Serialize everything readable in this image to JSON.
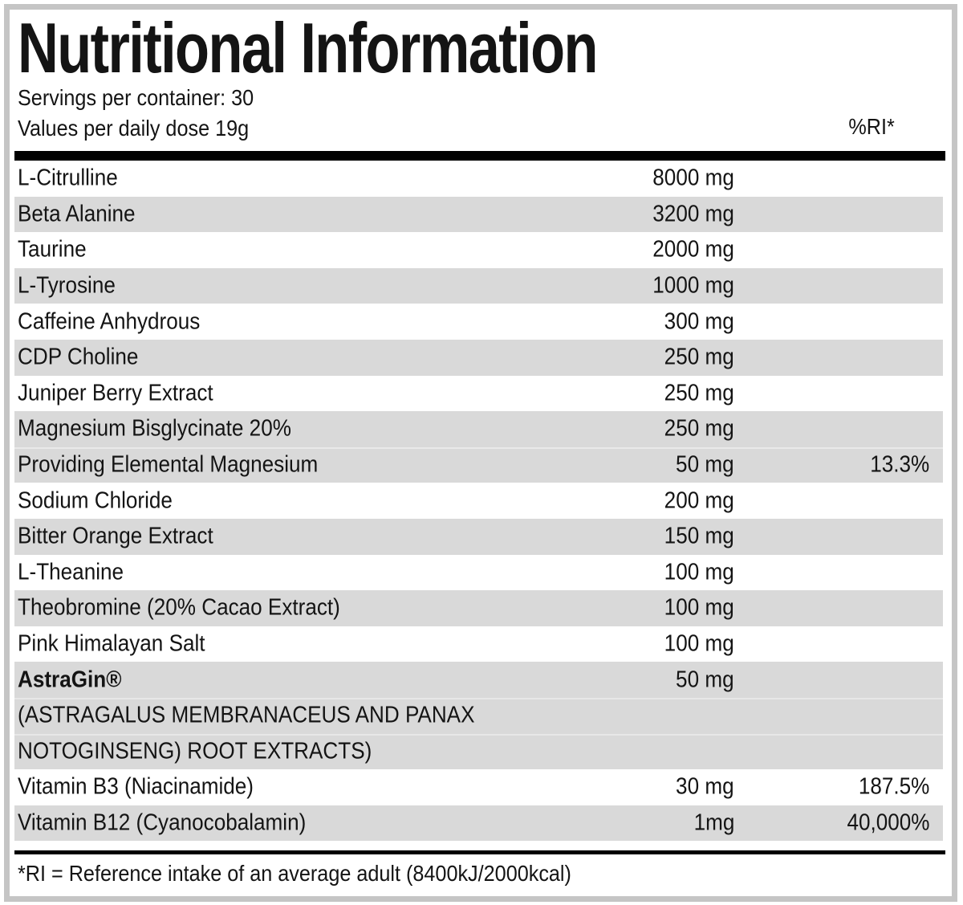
{
  "header": {
    "title": "Nutritional Information",
    "servings_line": "Servings per container: 30",
    "values_line": "Values per daily dose 19g",
    "ri_column_header": "%RI*"
  },
  "table": {
    "rows": [
      {
        "label": "L-Citrulline",
        "amount": "8000 mg",
        "ri": "",
        "shaded": false
      },
      {
        "label": "Beta Alanine",
        "amount": "3200 mg",
        "ri": "",
        "shaded": true
      },
      {
        "label": "Taurine",
        "amount": "2000 mg",
        "ri": "",
        "shaded": false
      },
      {
        "label": "L-Tyrosine",
        "amount": "1000 mg",
        "ri": "",
        "shaded": true
      },
      {
        "label": "Caffeine Anhydrous",
        "amount": "300 mg",
        "ri": "",
        "shaded": false
      },
      {
        "label": "CDP Choline",
        "amount": "250 mg",
        "ri": "",
        "shaded": true
      },
      {
        "label": "Juniper Berry Extract",
        "amount": "250 mg",
        "ri": "",
        "shaded": false
      },
      {
        "label": "Magnesium Bisglycinate 20%",
        "amount": "250 mg",
        "ri": "",
        "shaded": true
      },
      {
        "label": "Providing Elemental Magnesium",
        "amount": "50 mg",
        "ri": "13.3%",
        "shaded": true
      },
      {
        "label": "Sodium Chloride",
        "amount": "200 mg",
        "ri": "",
        "shaded": false
      },
      {
        "label": "Bitter Orange Extract",
        "amount": "150 mg",
        "ri": "",
        "shaded": true
      },
      {
        "label": "L-Theanine",
        "amount": "100 mg",
        "ri": "",
        "shaded": false
      },
      {
        "label": "Theobromine (20% Cacao Extract)",
        "amount": "100 mg",
        "ri": "",
        "shaded": true
      },
      {
        "label": "Pink Himalayan Salt",
        "amount": "100 mg",
        "ri": "",
        "shaded": false
      },
      {
        "label": "AstraGin®",
        "amount": "50 mg",
        "ri": "",
        "shaded": true,
        "bold": true,
        "sublines": [
          "(ASTRAGALUS MEMBRANACEUS AND PANAX",
          "NOTOGINSENG) ROOT EXTRACTS)"
        ]
      },
      {
        "label": "Vitamin B3 (Niacinamide)",
        "amount": "30 mg",
        "ri": "187.5%",
        "shaded": false
      },
      {
        "label": "Vitamin B12 (Cyanocobalamin)",
        "amount": "1mg",
        "ri": "40,000%",
        "shaded": true
      }
    ]
  },
  "footer": {
    "note": "*RI = Reference intake of an average adult (8400kJ/2000kcal)"
  },
  "colors": {
    "row_shade": "#d9d9d9",
    "frame_border": "#c5c5c5",
    "ink": "#141414",
    "rule": "#000000",
    "background": "#ffffff"
  }
}
